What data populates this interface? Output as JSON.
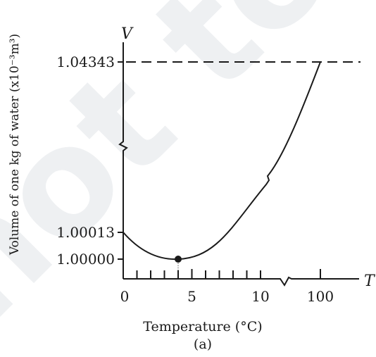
{
  "chart_data": {
    "type": "line",
    "xlabel": "Temperature (°C)",
    "ylabel": "Volume of one kg of water (x10⁻³m³)",
    "x_axis_symbol": "T",
    "y_axis_symbol": "V",
    "caption": "(a)",
    "watermark": "not to be",
    "x_ticks": [
      "0",
      "5",
      "10",
      "100"
    ],
    "y_ticks": [
      "1.00000",
      "1.00013",
      "1.04343"
    ],
    "axis_breaks": [
      "x between 10 and 100",
      "y between 1.00013 and 1.04343"
    ],
    "series": [
      {
        "x": [
          0,
          4,
          100
        ],
        "y": [
          1.00013,
          1.0,
          1.04343
        ]
      }
    ],
    "minimum_point": {
      "x": 4,
      "y": 1.0
    },
    "reference_line": {
      "y": 1.04343,
      "style": "dashed"
    },
    "colors": {
      "ink": "#1a1a1a",
      "watermark": "#eef0f2"
    }
  }
}
